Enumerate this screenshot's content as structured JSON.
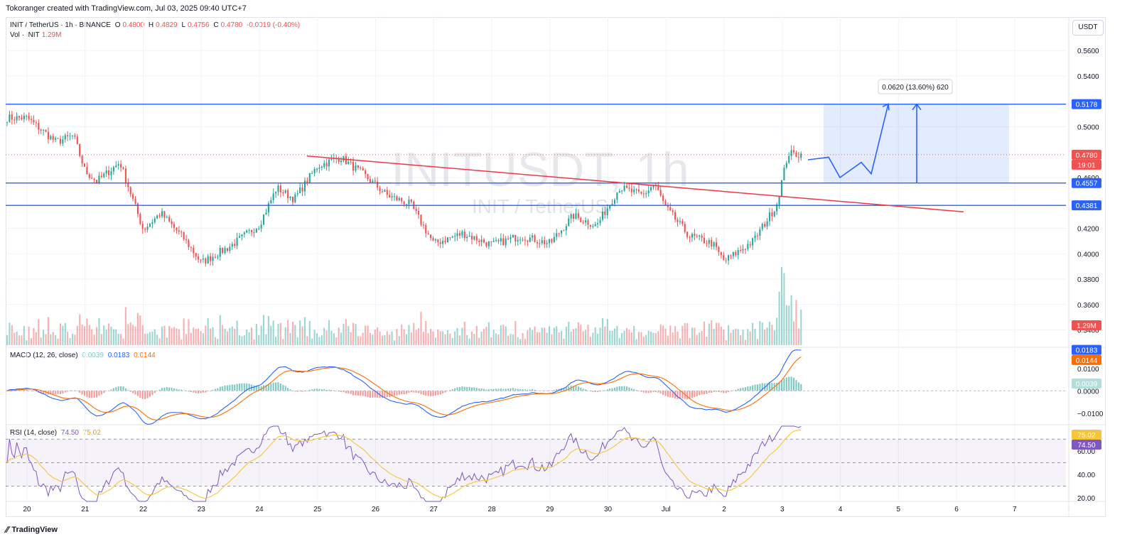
{
  "header": {
    "attribution": "Tokoranger created with TradingView.com, Jul 03, 2025 09:40 UTC+7"
  },
  "legend": {
    "symbol": "INIT / TetherUS · 1h · BINANCE",
    "o_label": "O",
    "o": "0.4800",
    "h_label": "H",
    "h": "0.4829",
    "l_label": "L",
    "l": "0.4756",
    "c_label": "C",
    "c": "0.4780",
    "change": "-0.0019 (-0.40%)",
    "vol_label": "Vol · INIT",
    "vol": "1.29M",
    "macd_label": "MACD (12, 26, close)",
    "macd_hist": "0.0039",
    "macd_line": "0.0183",
    "macd_signal": "0.0144",
    "rsi_label": "RSI (14, close)",
    "rsi": "74.50",
    "rsi_ma": "75.02"
  },
  "currency_button": "USDT",
  "watermark": {
    "ticker": "INITUSDT, 1h",
    "name": "INIT / TetherUS"
  },
  "measure_label": "0.0620 (13.60%) 620",
  "price_tags": {
    "resistance": "0.5178",
    "current": "0.4780",
    "countdown": "19:01",
    "support_top": "0.4557",
    "support_bottom": "0.4381",
    "volume": "1.29M",
    "macd_line": "0.0183",
    "macd_signal": "0.0144",
    "macd_hist": "0.0039",
    "rsi_ma": "75.02",
    "rsi": "74.50"
  },
  "footer": {
    "brand": "TradingView"
  },
  "colors": {
    "up": "#26a69a",
    "down": "#ef5350",
    "level": "#2962ff",
    "trend": "#f23645",
    "macd": "#2962ff",
    "signal": "#ff6d00",
    "rsi": "#7e57c2",
    "rsi_ma": "#f7c53c"
  },
  "chart_data": {
    "type": "candlestick",
    "price_axis": {
      "ticks": [
        "0.5600",
        "0.5400",
        "0.5000",
        "0.4600",
        "0.4200",
        "0.4000",
        "0.3800",
        "0.3600",
        "0.3400"
      ],
      "range": [
        0.328,
        0.573
      ]
    },
    "macd_axis": {
      "ticks": [
        "0.0100",
        "0.0000",
        "−0.0100"
      ],
      "range": [
        -0.0145,
        0.0185
      ]
    },
    "rsi_axis": {
      "ticks": [
        "60.00",
        "40.00",
        "20.00"
      ],
      "range": [
        17,
        81
      ],
      "bands": [
        30,
        50,
        70
      ]
    },
    "x_axis": {
      "labels": [
        "20",
        "21",
        "22",
        "23",
        "24",
        "25",
        "26",
        "27",
        "28",
        "29",
        "30",
        "Jul",
        "2",
        "3",
        "4",
        "5",
        "6",
        "7"
      ]
    },
    "levels": [
      0.5178,
      0.4557,
      0.4381
    ],
    "trendline": [
      {
        "x": "25",
        "y": 0.477
      },
      {
        "x": "6",
        "y": 0.433
      }
    ],
    "projection": [
      0.474,
      0.476,
      0.46,
      0.472,
      0.463,
      0.518
    ],
    "close_anchors": [
      {
        "x": "20",
        "y": 0.507
      },
      {
        "x": "20.5",
        "y": 0.488
      },
      {
        "x": "20.8",
        "y": 0.493
      },
      {
        "x": "21",
        "y": 0.465
      },
      {
        "x": "21.2",
        "y": 0.457
      },
      {
        "x": "21.6",
        "y": 0.472
      },
      {
        "x": "22",
        "y": 0.419
      },
      {
        "x": "22.3",
        "y": 0.432
      },
      {
        "x": "22.7",
        "y": 0.412
      },
      {
        "x": "23",
        "y": 0.393
      },
      {
        "x": "23.5",
        "y": 0.406
      },
      {
        "x": "24",
        "y": 0.423
      },
      {
        "x": "24.3",
        "y": 0.452
      },
      {
        "x": "24.6",
        "y": 0.443
      },
      {
        "x": "25",
        "y": 0.469
      },
      {
        "x": "25.4",
        "y": 0.476
      },
      {
        "x": "25.8",
        "y": 0.462
      },
      {
        "x": "26.2",
        "y": 0.446
      },
      {
        "x": "26.6",
        "y": 0.439
      },
      {
        "x": "27",
        "y": 0.408
      },
      {
        "x": "27.5",
        "y": 0.416
      },
      {
        "x": "28",
        "y": 0.407
      },
      {
        "x": "28.5",
        "y": 0.414
      },
      {
        "x": "29",
        "y": 0.408
      },
      {
        "x": "29.4",
        "y": 0.43
      },
      {
        "x": "29.8",
        "y": 0.422
      },
      {
        "x": "30.2",
        "y": 0.452
      },
      {
        "x": "30.6",
        "y": 0.446
      },
      {
        "x": "30.8",
        "y": 0.455
      },
      {
        "x": "Jul",
        "y": 0.436
      },
      {
        "x": "1.4",
        "y": 0.414
      },
      {
        "x": "1.8",
        "y": 0.408
      },
      {
        "x": "2",
        "y": 0.394
      },
      {
        "x": "2.5",
        "y": 0.41
      },
      {
        "x": "2.9",
        "y": 0.438
      },
      {
        "x": "3.1",
        "y": 0.479
      },
      {
        "x": "3.3",
        "y": 0.478
      }
    ]
  }
}
